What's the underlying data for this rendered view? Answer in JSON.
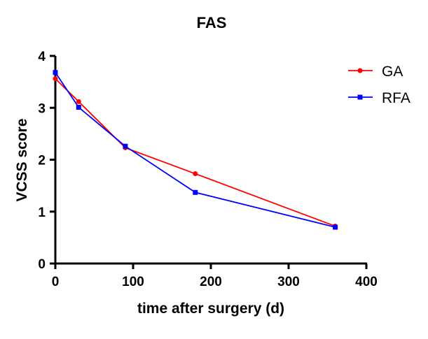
{
  "chart_data": {
    "type": "line",
    "title": "FAS",
    "xlabel": "time after surgery (d)",
    "ylabel": "VCSS score",
    "xlim": [
      0,
      400
    ],
    "ylim": [
      0,
      4
    ],
    "xticks": [
      "0",
      "100",
      "200",
      "300",
      "400"
    ],
    "yticks": [
      "0",
      "1",
      "2",
      "3",
      "4"
    ],
    "grid": false,
    "legend_position": "top-right",
    "x": [
      0,
      30,
      90,
      180,
      360
    ],
    "series": [
      {
        "name": "GA",
        "color": "#ff0000",
        "marker": "circle",
        "values": [
          3.56,
          3.12,
          2.23,
          1.73,
          0.72
        ]
      },
      {
        "name": "RFA",
        "color": "#0000ff",
        "marker": "square",
        "values": [
          3.68,
          3.01,
          2.26,
          1.37,
          0.7
        ]
      }
    ]
  }
}
